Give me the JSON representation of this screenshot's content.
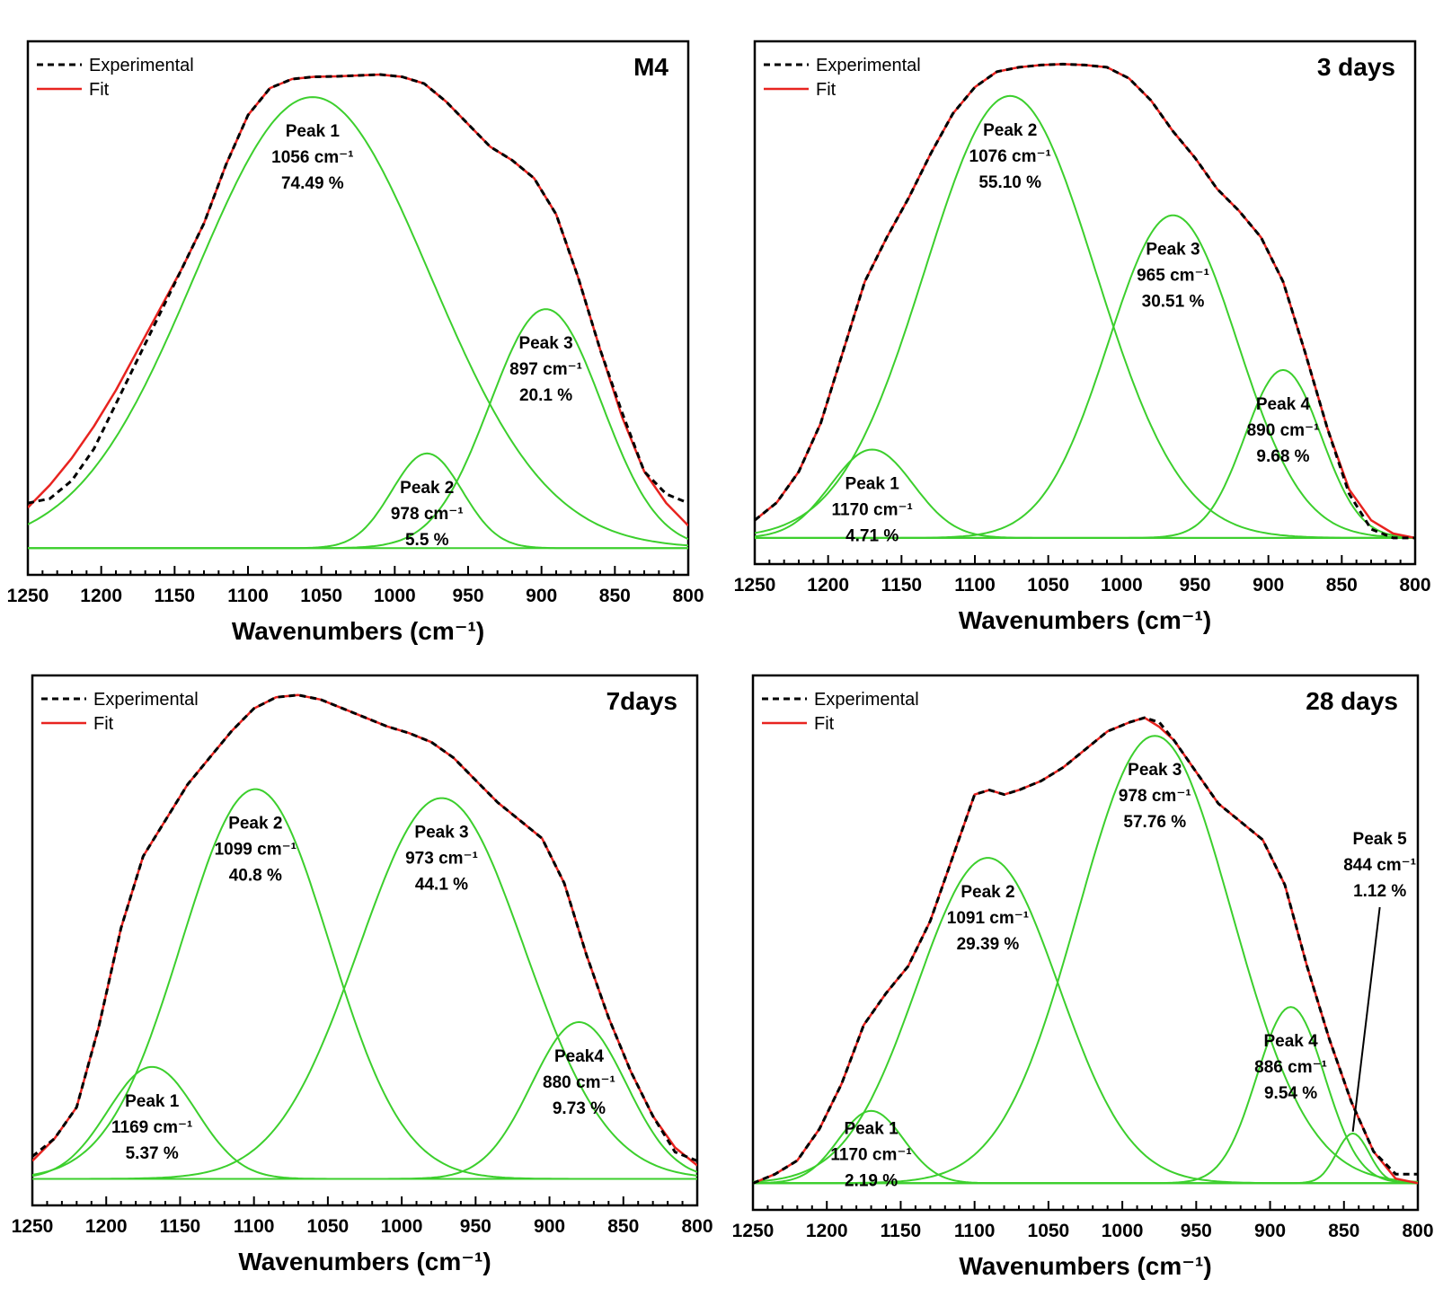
{
  "chart_data": [
    {
      "type": "line",
      "title": "M4",
      "xlabel": "Wavenumbers (cm⁻¹)",
      "xlim": [
        1250,
        800
      ],
      "x_reversed": true,
      "x_ticks": [
        1250,
        1200,
        1150,
        1100,
        1050,
        1000,
        950,
        900,
        850,
        800
      ],
      "ylim": [
        0,
        1.1
      ],
      "legend": {
        "position": "top-left",
        "entries": [
          "Experimental",
          "Fit"
        ]
      },
      "colors": {
        "experimental": "#000000",
        "fit": "#e8231f",
        "peaks": "#3ccf2d"
      },
      "experimental": {
        "name": "Experimental",
        "x": [
          1250,
          1235,
          1220,
          1205,
          1190,
          1175,
          1160,
          1145,
          1130,
          1115,
          1100,
          1085,
          1070,
          1055,
          1040,
          1025,
          1010,
          995,
          980,
          965,
          950,
          935,
          920,
          905,
          890,
          875,
          860,
          845,
          830,
          815,
          800
        ],
        "y": [
          0.1,
          0.11,
          0.15,
          0.22,
          0.32,
          0.42,
          0.52,
          0.62,
          0.72,
          0.85,
          0.96,
          1.02,
          1.04,
          1.045,
          1.046,
          1.048,
          1.05,
          1.045,
          1.03,
          0.99,
          0.94,
          0.89,
          0.86,
          0.82,
          0.74,
          0.6,
          0.44,
          0.3,
          0.17,
          0.12,
          0.1
        ]
      },
      "fit": {
        "name": "Fit",
        "x": [
          1250,
          1235,
          1220,
          1205,
          1190,
          1175,
          1160,
          1145,
          1130,
          1115,
          1100,
          1085,
          1070,
          1055,
          1040,
          1025,
          1010,
          995,
          980,
          965,
          950,
          935,
          920,
          905,
          890,
          875,
          860,
          845,
          830,
          815,
          800
        ],
        "y": [
          0.09,
          0.14,
          0.2,
          0.27,
          0.35,
          0.44,
          0.53,
          0.62,
          0.72,
          0.85,
          0.96,
          1.02,
          1.04,
          1.045,
          1.046,
          1.048,
          1.05,
          1.045,
          1.03,
          0.99,
          0.94,
          0.89,
          0.86,
          0.82,
          0.74,
          0.6,
          0.44,
          0.29,
          0.17,
          0.1,
          0.05
        ]
      },
      "peaks": [
        {
          "label": "Peak 1",
          "center": 1056,
          "center_text": "1056 cm⁻¹",
          "area_text": "74.49 %",
          "height": 1.0,
          "sigma": 80
        },
        {
          "label": "Peak 2",
          "center": 978,
          "center_text": "978 cm⁻¹",
          "area_text": "5.5 %",
          "height": 0.21,
          "sigma": 24
        },
        {
          "label": "Peak 3",
          "center": 897,
          "center_text": "897 cm⁻¹",
          "area_text": "20.1 %",
          "height": 0.53,
          "sigma": 38
        }
      ]
    },
    {
      "type": "line",
      "title": "3 days",
      "xlabel": "Wavenumbers (cm⁻¹)",
      "xlim": [
        1250,
        800
      ],
      "x_reversed": true,
      "x_ticks": [
        1250,
        1200,
        1150,
        1100,
        1050,
        1000,
        950,
        900,
        850,
        800
      ],
      "ylim": [
        0,
        1.1
      ],
      "legend": {
        "position": "top-left",
        "entries": [
          "Experimental",
          "Fit"
        ]
      },
      "colors": {
        "experimental": "#000000",
        "fit": "#e8231f",
        "peaks": "#3ccf2d"
      },
      "experimental": {
        "name": "Experimental",
        "x": [
          1250,
          1235,
          1220,
          1205,
          1190,
          1175,
          1160,
          1145,
          1130,
          1115,
          1100,
          1085,
          1070,
          1055,
          1040,
          1025,
          1010,
          995,
          980,
          965,
          950,
          935,
          920,
          905,
          890,
          875,
          860,
          845,
          830,
          815,
          800
        ],
        "y": [
          0.04,
          0.08,
          0.15,
          0.26,
          0.42,
          0.58,
          0.68,
          0.77,
          0.87,
          0.96,
          1.02,
          1.055,
          1.065,
          1.07,
          1.072,
          1.07,
          1.065,
          1.04,
          0.99,
          0.92,
          0.86,
          0.79,
          0.74,
          0.68,
          0.58,
          0.42,
          0.25,
          0.1,
          0.02,
          0.0,
          0.0
        ]
      },
      "fit": {
        "name": "Fit",
        "x": [
          1250,
          1235,
          1220,
          1205,
          1190,
          1175,
          1160,
          1145,
          1130,
          1115,
          1100,
          1085,
          1070,
          1055,
          1040,
          1025,
          1010,
          995,
          980,
          965,
          950,
          935,
          920,
          905,
          890,
          875,
          860,
          845,
          830,
          815,
          800
        ],
        "y": [
          0.04,
          0.08,
          0.15,
          0.26,
          0.42,
          0.58,
          0.68,
          0.77,
          0.87,
          0.96,
          1.02,
          1.055,
          1.065,
          1.07,
          1.072,
          1.07,
          1.065,
          1.04,
          0.99,
          0.92,
          0.86,
          0.79,
          0.74,
          0.68,
          0.58,
          0.42,
          0.25,
          0.11,
          0.04,
          0.01,
          0.0
        ]
      },
      "peaks": [
        {
          "label": "Peak 1",
          "center": 1170,
          "center_text": "1170 cm⁻¹",
          "area_text": "4.71 %",
          "height": 0.2,
          "sigma": 28
        },
        {
          "label": "Peak 2",
          "center": 1076,
          "center_text": "1076 cm⁻¹",
          "area_text": "55.10 %",
          "height": 1.0,
          "sigma": 58
        },
        {
          "label": "Peak 3",
          "center": 965,
          "center_text": "965 cm⁻¹",
          "area_text": "30.51 %",
          "height": 0.73,
          "sigma": 44
        },
        {
          "label": "Peak 4",
          "center": 890,
          "center_text": "890 cm⁻¹",
          "area_text": "9.68 %",
          "height": 0.38,
          "sigma": 26
        }
      ]
    },
    {
      "type": "line",
      "title": "7days",
      "xlabel": "Wavenumbers (cm⁻¹)",
      "xlim": [
        1250,
        800
      ],
      "x_reversed": true,
      "x_ticks": [
        1250,
        1200,
        1150,
        1100,
        1050,
        1000,
        950,
        900,
        850,
        800
      ],
      "ylim": [
        0,
        1.1
      ],
      "legend": {
        "position": "top-left",
        "entries": [
          "Experimental",
          "Fit"
        ]
      },
      "colors": {
        "experimental": "#000000",
        "fit": "#e8231f",
        "peaks": "#3ccf2d"
      },
      "experimental": {
        "name": "Experimental",
        "x": [
          1250,
          1235,
          1220,
          1205,
          1190,
          1175,
          1160,
          1145,
          1130,
          1115,
          1100,
          1085,
          1070,
          1055,
          1040,
          1025,
          1010,
          995,
          980,
          965,
          950,
          935,
          920,
          905,
          890,
          875,
          860,
          845,
          830,
          815,
          800
        ],
        "y": [
          0.05,
          0.09,
          0.16,
          0.34,
          0.56,
          0.72,
          0.8,
          0.88,
          0.94,
          1.0,
          1.05,
          1.075,
          1.08,
          1.07,
          1.05,
          1.03,
          1.01,
          0.995,
          0.975,
          0.94,
          0.89,
          0.84,
          0.8,
          0.76,
          0.66,
          0.5,
          0.36,
          0.24,
          0.14,
          0.06,
          0.04
        ]
      },
      "fit": {
        "name": "Fit",
        "x": [
          1250,
          1235,
          1220,
          1205,
          1190,
          1175,
          1160,
          1145,
          1130,
          1115,
          1100,
          1085,
          1070,
          1055,
          1040,
          1025,
          1010,
          995,
          980,
          965,
          950,
          935,
          920,
          905,
          890,
          875,
          860,
          845,
          830,
          815,
          800
        ],
        "y": [
          0.04,
          0.09,
          0.16,
          0.34,
          0.56,
          0.72,
          0.8,
          0.88,
          0.94,
          1.0,
          1.05,
          1.075,
          1.08,
          1.07,
          1.05,
          1.03,
          1.01,
          0.995,
          0.975,
          0.94,
          0.89,
          0.84,
          0.8,
          0.76,
          0.66,
          0.5,
          0.36,
          0.24,
          0.14,
          0.07,
          0.03
        ]
      },
      "peaks": [
        {
          "label": "Peak 1",
          "center": 1169,
          "center_text": "1169 cm⁻¹",
          "area_text": "5.37 %",
          "height": 0.25,
          "sigma": 30
        },
        {
          "label": "Peak 2",
          "center": 1099,
          "center_text": "1099 cm⁻¹",
          "area_text": "40.8 %",
          "height": 0.87,
          "sigma": 50
        },
        {
          "label": "Peak 3",
          "center": 973,
          "center_text": "973 cm⁻¹",
          "area_text": "44.1 %",
          "height": 0.85,
          "sigma": 56
        },
        {
          "label": "Peak4",
          "center": 880,
          "center_text": "880 cm⁻¹",
          "area_text": "9.73 %",
          "height": 0.35,
          "sigma": 32
        }
      ]
    },
    {
      "type": "line",
      "title": "28 days",
      "xlabel": "Wavenumbers (cm⁻¹)",
      "xlim": [
        1250,
        800
      ],
      "x_reversed": true,
      "x_ticks": [
        1250,
        1200,
        1150,
        1100,
        1050,
        1000,
        950,
        900,
        850,
        800
      ],
      "ylim": [
        0,
        1.1
      ],
      "legend": {
        "position": "top-left",
        "entries": [
          "Experimental",
          "Fit"
        ]
      },
      "colors": {
        "experimental": "#000000",
        "fit": "#e8231f",
        "peaks": "#3ccf2d"
      },
      "experimental": {
        "name": "Experimental",
        "x": [
          1250,
          1235,
          1220,
          1205,
          1190,
          1175,
          1160,
          1145,
          1130,
          1115,
          1100,
          1090,
          1080,
          1070,
          1055,
          1040,
          1025,
          1010,
          995,
          985,
          975,
          965,
          950,
          935,
          920,
          905,
          890,
          875,
          860,
          845,
          830,
          815,
          800
        ],
        "y": [
          0.0,
          0.02,
          0.05,
          0.12,
          0.22,
          0.35,
          0.42,
          0.48,
          0.58,
          0.72,
          0.86,
          0.87,
          0.86,
          0.87,
          0.89,
          0.92,
          0.96,
          1.0,
          1.02,
          1.03,
          1.02,
          0.98,
          0.91,
          0.84,
          0.8,
          0.76,
          0.66,
          0.48,
          0.32,
          0.18,
          0.07,
          0.02,
          0.02
        ]
      },
      "fit": {
        "name": "Fit",
        "x": [
          1250,
          1235,
          1220,
          1205,
          1190,
          1175,
          1160,
          1145,
          1130,
          1115,
          1100,
          1090,
          1080,
          1070,
          1055,
          1040,
          1025,
          1010,
          995,
          985,
          975,
          965,
          950,
          935,
          920,
          905,
          890,
          875,
          860,
          845,
          830,
          815,
          800
        ],
        "y": [
          0.0,
          0.02,
          0.05,
          0.12,
          0.22,
          0.35,
          0.42,
          0.48,
          0.58,
          0.72,
          0.86,
          0.87,
          0.86,
          0.87,
          0.89,
          0.92,
          0.96,
          1.0,
          1.02,
          1.03,
          1.01,
          0.98,
          0.91,
          0.84,
          0.8,
          0.76,
          0.66,
          0.48,
          0.32,
          0.18,
          0.07,
          0.01,
          0.0
        ]
      },
      "peaks": [
        {
          "label": "Peak 1",
          "center": 1170,
          "center_text": "1170 cm⁻¹",
          "area_text": "2.19 %",
          "height": 0.16,
          "sigma": 22
        },
        {
          "label": "Peak 2",
          "center": 1091,
          "center_text": "1091 cm⁻¹",
          "area_text": "29.39 %",
          "height": 0.72,
          "sigma": 48
        },
        {
          "label": "Peak 3",
          "center": 978,
          "center_text": "978 cm⁻¹",
          "area_text": "57.76 %",
          "height": 0.99,
          "sigma": 52
        },
        {
          "label": "Peak 4",
          "center": 886,
          "center_text": "886 cm⁻¹",
          "area_text": "9.54 %",
          "height": 0.39,
          "sigma": 23
        },
        {
          "label": "Peak 5",
          "center": 844,
          "center_text": "844 cm⁻¹",
          "area_text": "1.12 %",
          "height": 0.11,
          "sigma": 11
        }
      ]
    }
  ]
}
